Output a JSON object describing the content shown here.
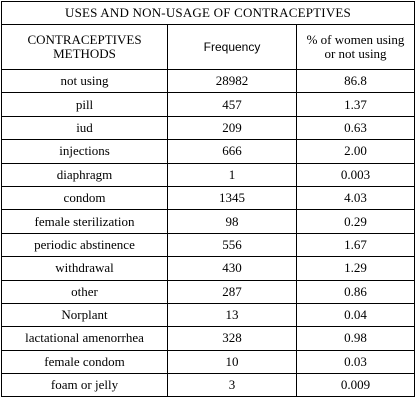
{
  "table": {
    "title": "USES AND NON-USAGE OF CONTRACEPTIVES",
    "header": [
      "CONTRACEPTIVES METHODS",
      "Frequency",
      "% of women using or not using"
    ],
    "rows": [
      [
        "not using",
        "28982",
        "86.8"
      ],
      [
        "pill",
        "457",
        "1.37"
      ],
      [
        "iud",
        "209",
        "0.63"
      ],
      [
        "injections",
        "666",
        "2.00"
      ],
      [
        "diaphragm",
        "1",
        "0.003"
      ],
      [
        "condom",
        "1345",
        "4.03"
      ],
      [
        "female sterilization",
        "98",
        "0.29"
      ],
      [
        "periodic abstinence",
        "556",
        "1.67"
      ],
      [
        "withdrawal",
        "430",
        "1.29"
      ],
      [
        "other",
        "287",
        "0.86"
      ],
      [
        "Norplant",
        "13",
        "0.04"
      ],
      [
        "lactational amenorrhea",
        "328",
        "0.98"
      ],
      [
        "female condom",
        "10",
        "0.03"
      ],
      [
        "foam or jelly",
        "3",
        "0.009"
      ]
    ]
  }
}
